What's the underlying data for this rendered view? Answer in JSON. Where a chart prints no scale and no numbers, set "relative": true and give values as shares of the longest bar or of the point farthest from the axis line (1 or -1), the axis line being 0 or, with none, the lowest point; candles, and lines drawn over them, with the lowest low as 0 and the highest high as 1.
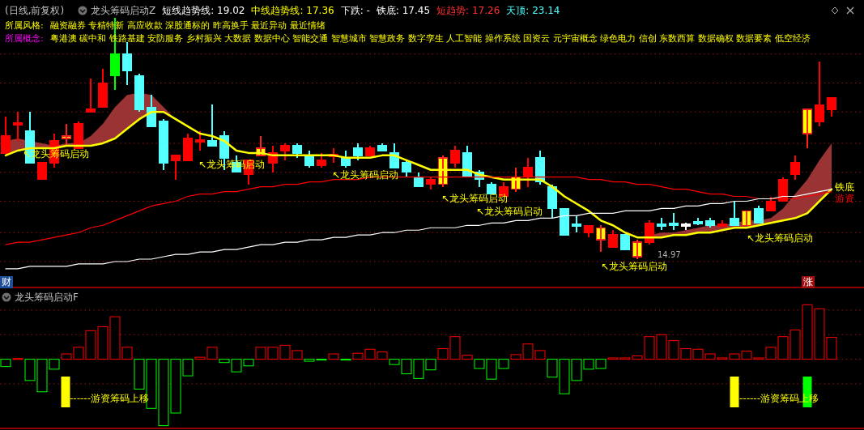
{
  "chart_data": [
    {
      "type": "candlestick",
      "title": "(日线,前复权)",
      "relative": true,
      "ref_lines": [
        {
          "axis": "y",
          "value": 0.85,
          "color": "#a01010",
          "line_style": "dotted"
        },
        {
          "axis": "y",
          "value": 0.73,
          "color": "#a01010",
          "line_style": "dotted"
        },
        {
          "axis": "y",
          "value": 0.61,
          "color": "#a01010",
          "line_style": "dotted"
        },
        {
          "axis": "y",
          "value": 0.48,
          "color": "#a01010",
          "line_style": "dotted"
        },
        {
          "axis": "y",
          "value": 0.36,
          "color": "#a01010",
          "line_style": "dotted"
        },
        {
          "axis": "y",
          "value": 0.24,
          "color": "#a01010",
          "line_style": "dotted"
        },
        {
          "axis": "y",
          "value": 0.11,
          "color": "#a01010",
          "line_style": "dotted"
        },
        {
          "axis": "y",
          "value": -0.01,
          "color": "#a01010",
          "line_style": "dotted"
        }
      ],
      "categories": [
        null,
        null,
        null,
        null,
        null,
        null,
        null,
        null,
        null,
        null,
        null,
        null,
        null,
        null,
        null,
        null,
        null,
        null,
        null,
        null,
        null,
        null,
        null,
        null,
        null,
        null,
        null,
        null,
        null,
        null,
        null,
        null,
        null,
        null,
        null,
        null,
        null,
        null,
        null,
        null,
        null,
        null,
        null,
        null,
        null,
        null,
        null,
        null,
        null,
        null,
        null,
        null,
        null,
        null,
        null,
        null,
        null,
        null,
        null,
        null,
        null,
        null,
        null,
        null,
        null,
        null,
        null,
        null,
        null
      ],
      "ohlc": [
        [
          0.44,
          0.59,
          0.44,
          0.51
        ],
        [
          0.56,
          0.61,
          0.49,
          0.56
        ],
        [
          0.53,
          0.61,
          0.4,
          0.4
        ],
        [
          0.33,
          0.4,
          0.33,
          0.4
        ],
        [
          0.4,
          0.52,
          0.38,
          0.49
        ],
        [
          0.5,
          0.56,
          0.47,
          0.51
        ],
        [
          0.46,
          0.57,
          0.46,
          0.56
        ],
        [
          0.61,
          0.75,
          0.61,
          0.62
        ],
        [
          0.63,
          0.79,
          0.63,
          0.73
        ],
        [
          0.85,
          1,
          0.7,
          0.76
        ],
        [
          0.85,
          0.9,
          0.72,
          0.78
        ],
        [
          0.76,
          0.77,
          0.61,
          0.62
        ],
        [
          0.63,
          0.68,
          0.55,
          0.55
        ],
        [
          0.57,
          0.58,
          0.37,
          0.4
        ],
        [
          0.41,
          0.43,
          0.33,
          0.43
        ],
        [
          0.41,
          0.52,
          0.41,
          0.5
        ],
        [
          0.49,
          0.53,
          0.45,
          0.49
        ],
        [
          0.49,
          0.64,
          0.47,
          0.47
        ],
        [
          0.51,
          0.53,
          0.37,
          0.42
        ],
        [
          0.4,
          0.43,
          0.36,
          0.36
        ],
        [
          0.35,
          0.41,
          0.31,
          0.41
        ],
        [
          0.43,
          0.51,
          0.43,
          0.46
        ],
        [
          0.4,
          0.47,
          0.36,
          0.44
        ],
        [
          0.45,
          0.48,
          0.41,
          0.47
        ],
        [
          0.47,
          0.48,
          0.42,
          0.44
        ],
        [
          0.43,
          0.45,
          0.38,
          0.39
        ],
        [
          0.39,
          0.44,
          0.38,
          0.41
        ],
        [
          0.43,
          0.46,
          0.4,
          0.43
        ],
        [
          0.42,
          0.45,
          0.38,
          0.39
        ],
        [
          0.46,
          0.48,
          0.41,
          0.43
        ],
        [
          0.43,
          0.47,
          0.43,
          0.46
        ],
        [
          0.47,
          0.48,
          0.45,
          0.45
        ],
        [
          0.44,
          0.48,
          0.38,
          0.38
        ],
        [
          0.4,
          0.41,
          0.34,
          0.36
        ],
        [
          0.34,
          0.36,
          0.3,
          0.3
        ],
        [
          0.31,
          0.34,
          0.29,
          0.33
        ],
        [
          0.31,
          0.43,
          0.3,
          0.42
        ],
        [
          0.4,
          0.47,
          0.38,
          0.45
        ],
        [
          0.44,
          0.47,
          0.34,
          0.34
        ],
        [
          0.36,
          0.37,
          0.3,
          0.33
        ],
        [
          0.31,
          0.32,
          0.27,
          0.27
        ],
        [
          0.26,
          0.32,
          0.26,
          0.3
        ],
        [
          0.29,
          0.38,
          0.28,
          0.34
        ],
        [
          0.34,
          0.42,
          0.3,
          0.38
        ],
        [
          0.42,
          0.45,
          0.31,
          0.32
        ],
        [
          0.3,
          0.31,
          0.17,
          0.21
        ],
        [
          0.21,
          0.21,
          0.1,
          0.1
        ],
        [
          0.14,
          0.18,
          0.11,
          0.14
        ],
        [
          0.11,
          0.14,
          0.09,
          0.14
        ],
        [
          0.08,
          0.14,
          0.03,
          0.13
        ],
        [
          0.05,
          0.12,
          0.05,
          0.1
        ],
        [
          0.1,
          0.1,
          0.04,
          0.04
        ],
        [
          0.01,
          0.08,
          0,
          0.07
        ],
        [
          0.07,
          0.16,
          0.06,
          0.15
        ],
        [
          0.14,
          0.17,
          0.12,
          0.14
        ],
        [
          0.15,
          0.19,
          0.12,
          0.14
        ],
        [
          0.14,
          0.15,
          0.12,
          0.14
        ],
        [
          0.15,
          0.17,
          0.14,
          0.15
        ],
        [
          0.16,
          0.17,
          0.13,
          0.14
        ],
        [
          0.14,
          0.16,
          0.13,
          0.14
        ],
        [
          0.17,
          0.24,
          0.14,
          0.14
        ],
        [
          0.14,
          0.2,
          0.14,
          0.2
        ],
        [
          0.21,
          0.22,
          0.15,
          0.15
        ],
        [
          0.2,
          0.26,
          0.2,
          0.24
        ],
        [
          0.24,
          0.34,
          0.24,
          0.33
        ],
        [
          0.35,
          0.43,
          0.33,
          0.4
        ],
        [
          0.52,
          0.62,
          0.46,
          0.62
        ],
        [
          0.57,
          0.82,
          0.55,
          0.64
        ],
        [
          0.62,
          0.67,
          0.59,
          0.67
        ]
      ],
      "colors": [
        "#ff0000",
        "#ff0000",
        "#54ffff",
        "#ff0000",
        "#ff0000",
        "#ffff00",
        "#ff0000",
        "#ff0000",
        "#ff0000",
        "#00ff00",
        "#54ffff",
        "#54ffff",
        "#54ffff",
        "#54ffff",
        "#ff0000",
        "#ff0000",
        "#ff0000",
        "#54ffff",
        "#54ffff",
        "#54ffff",
        "#ff0000",
        "#ffff00",
        "#ff0000",
        "#ff0000",
        "#54ffff",
        "#54ffff",
        "#ff0000",
        "#ff0000",
        "#54ffff",
        "#54ffff",
        "#ff0000",
        "#54ffff",
        "#54ffff",
        "#54ffff",
        "#54ffff",
        "#ff0000",
        "#ffff00",
        "#ff0000",
        "#54ffff",
        "#54ffff",
        "#54ffff",
        "#ff0000",
        "#ffff00",
        "#ff0000",
        "#54ffff",
        "#54ffff",
        "#54ffff",
        "#54ffff",
        "#ff0000",
        "#ffff00",
        "#ff0000",
        "#54ffff",
        "#ffff00",
        "#ff0000",
        "#54ffff",
        "#54ffff",
        "#ffffff",
        "#54ffff",
        "#54ffff",
        "#ff0000",
        "#54ffff",
        "#ffff00",
        "#54ffff",
        "#ff0000",
        "#ff0000",
        "#ff0000",
        "#ffff00",
        "#ff0000",
        "#ff0000"
      ],
      "series": [
        {
          "type": "line",
          "color": "#ffff00",
          "values": [
            0.43,
            0.45,
            0.46,
            0.46,
            0.46,
            0.47,
            0.47,
            0.47,
            0.48,
            0.5,
            0.54,
            0.58,
            0.61,
            0.61,
            0.58,
            0.55,
            0.52,
            0.51,
            0.49,
            0.45,
            0.44,
            0.44,
            0.43,
            0.43,
            0.43,
            0.43,
            0.43,
            0.43,
            0.42,
            0.42,
            0.42,
            0.43,
            0.43,
            0.41,
            0.39,
            0.37,
            0.37,
            0.37,
            0.37,
            0.35,
            0.34,
            0.33,
            0.33,
            0.33,
            0.33,
            0.3,
            0.26,
            0.23,
            0.2,
            0.16,
            0.14,
            0.11,
            0.09,
            0.09,
            0.09,
            0.1,
            0.1,
            0.11,
            0.11,
            0.12,
            0.13,
            0.13,
            0.14,
            0.15,
            0.16,
            0.17,
            0.19,
            0.24,
            0.29
          ],
          "lower": [
            0.43,
            0.45,
            0.46,
            0.46,
            0.46,
            0.47,
            0.47,
            0.47,
            0.48,
            0.5,
            0.54,
            0.58,
            0.61,
            0.61,
            0.58,
            null,
            null,
            null,
            null,
            null,
            null,
            null,
            null,
            null,
            null,
            null,
            null,
            null,
            null,
            null,
            null,
            null,
            null,
            null,
            null,
            null,
            null,
            null,
            null,
            null,
            null,
            null,
            null,
            null,
            null,
            null,
            null,
            null,
            null,
            null,
            null,
            null,
            0.09,
            0.09,
            0.09,
            0.1,
            0.1,
            0.11,
            0.11,
            0.12,
            0.13,
            0.13,
            0.14,
            0.15,
            0.16,
            0.17,
            0.19,
            0.24,
            0.29
          ],
          "upper": [
            0.49,
            0.5,
            0.49,
            0.48,
            0.47,
            0.48,
            0.48,
            0.51,
            0.56,
            0.63,
            0.68,
            0.69,
            0.68,
            0.63,
            0.58,
            null,
            null,
            null,
            null,
            null,
            null,
            null,
            null,
            null,
            null,
            null,
            null,
            null,
            null,
            null,
            null,
            null,
            null,
            null,
            null,
            null,
            null,
            null,
            null,
            null,
            null,
            null,
            null,
            null,
            null,
            null,
            null,
            null,
            null,
            null,
            null,
            null,
            0.09,
            0.1,
            0.11,
            0.11,
            0.12,
            0.13,
            0.14,
            0.14,
            0.15,
            0.16,
            0.16,
            0.17,
            0.21,
            0.27,
            0.33,
            0.41,
            0.48
          ]
        },
        {
          "type": "line",
          "color": "#ff0000",
          "values": [
            0.06,
            0.07,
            0.07,
            0.08,
            0.09,
            0.1,
            0.11,
            0.13,
            0.14,
            0.16,
            0.18,
            0.2,
            0.22,
            0.23,
            0.24,
            0.26,
            0.27,
            0.27,
            0.28,
            0.28,
            0.29,
            0.3,
            0.3,
            0.31,
            0.31,
            0.32,
            0.32,
            0.33,
            0.33,
            0.33,
            0.34,
            0.34,
            0.34,
            0.34,
            0.34,
            0.34,
            0.34,
            0.34,
            0.34,
            0.34,
            0.34,
            0.34,
            0.34,
            0.34,
            0.34,
            0.34,
            0.34,
            0.34,
            0.33,
            0.33,
            0.32,
            0.32,
            0.31,
            0.31,
            0.3,
            0.29,
            0.29,
            0.28,
            0.27,
            0.27,
            0.26,
            0.26,
            0.25,
            0.25,
            0.25,
            0.25,
            0.26,
            0.27,
            0.28
          ]
        },
        {
          "type": "line",
          "color": "#ffffff",
          "values": [
            -0.04,
            -0.04,
            -0.03,
            -0.03,
            -0.03,
            -0.03,
            -0.02,
            -0.02,
            -0.02,
            -0.01,
            -0.01,
            0,
            0,
            0.01,
            0.02,
            0.02,
            0.03,
            0.03,
            0.04,
            0.04,
            0.05,
            0.06,
            0.06,
            0.07,
            0.07,
            0.08,
            0.08,
            0.09,
            0.09,
            0.1,
            0.1,
            0.11,
            0.11,
            0.12,
            0.12,
            0.13,
            0.13,
            0.13,
            0.14,
            0.14,
            0.15,
            0.15,
            0.16,
            0.16,
            0.17,
            0.17,
            0.18,
            0.18,
            0.19,
            0.19,
            0.19,
            0.2,
            0.2,
            0.2,
            0.21,
            0.21,
            0.22,
            0.22,
            0.23,
            0.23,
            0.24,
            0.24,
            0.25,
            0.25,
            0.26,
            0.26,
            0.27,
            0.28,
            0.29
          ]
        }
      ],
      "annotations": [
        "龙头筹码启动Z",
        "短线趋势线: 19.02",
        "中线趋势线: 17.36",
        "下跌: -",
        "铁底: 17.45",
        "短趋势: 17.26",
        "天顶: 23.14",
        "所属风格:",
        "融资融券 专精特新 高应收款 深股通标的 昨高换手 最近异动 最近情绪",
        "所属概念:",
        "粤港澳 碳中和 铁路基建 安防服务 乡村振兴 大数据 数据中心 智能交通 智慧城市 智慧政务 数字孪生 人工智能 操作系统 国资云 元宇宙概念 绿色电力 信创 东数西算 数据确权 数据要素 低空经济",
        "↖龙头筹码启动",
        "↖龙头筹码启动",
        "↖龙头筹码启动",
        "↖龙头筹码启动",
        "↖龙头筹码启动",
        "↖龙头筹码启动",
        "↖龙头筹码启动",
        "铁底",
        "游资",
        "14.97",
        "财",
        "涨"
      ]
    },
    {
      "type": "bar",
      "title": "龙头筹码启动F",
      "relative": true,
      "ref_lines": [
        {
          "axis": "y",
          "value": 0.74,
          "color": "#a01010",
          "line_style": "dotted"
        },
        {
          "axis": "y",
          "value": 0.37,
          "color": "#a01010",
          "line_style": "dotted"
        },
        {
          "axis": "y",
          "value": 0,
          "color": "#a01010",
          "line_style": "dotted"
        },
        {
          "axis": "y",
          "value": -0.37,
          "color": "#a01010",
          "line_style": "dotted"
        }
      ],
      "categories": [
        null,
        null,
        null,
        null,
        null,
        null,
        null,
        null,
        null,
        null,
        null,
        null,
        null,
        null,
        null,
        null,
        null,
        null,
        null,
        null,
        null,
        null,
        null,
        null,
        null,
        null,
        null,
        null,
        null,
        null,
        null,
        null,
        null,
        null,
        null,
        null,
        null,
        null,
        null,
        null,
        null,
        null,
        null,
        null,
        null,
        null,
        null,
        null,
        null,
        null,
        null,
        null,
        null,
        null,
        null,
        null,
        null,
        null,
        null,
        null,
        null,
        null,
        null,
        null,
        null,
        null,
        null,
        null,
        null
      ],
      "series": [
        {
          "values": [
            -0.11,
            0.01,
            -0.32,
            -0.49,
            -0.15,
            0.08,
            0.18,
            0.43,
            0.49,
            0.64,
            0.18,
            -0.45,
            -0.74,
            -1,
            -0.81,
            -0.25,
            0.03,
            0.18,
            -0.05,
            -0.19,
            -0.1,
            0.18,
            0.18,
            0.21,
            0.13,
            -0.03,
            -0.01,
            0.08,
            -0.01,
            0.09,
            0.15,
            0.11,
            -0.08,
            -0.22,
            -0.29,
            -0.16,
            0.16,
            0.34,
            0.06,
            -0.14,
            -0.3,
            -0.14,
            0.07,
            0.23,
            0.13,
            -0.27,
            -0.52,
            -0.32,
            -0.15,
            -0.14,
            0.02,
            0.02,
            0.05,
            0.34,
            0.37,
            0.28,
            0.16,
            0.15,
            0.08,
            0.02,
            0.08,
            0.12,
            0.02,
            0.18,
            0.34,
            0.44,
            0.82,
            0.76,
            0.33
          ],
          "colors": [
            "#00ff00",
            "#ff0000",
            "#00ff00",
            "#00ff00",
            "#00ff00",
            "#ff0000",
            "#ff0000",
            "#ff0000",
            "#ff0000",
            "#ff0000",
            "#ff0000",
            "#00ff00",
            "#00ff00",
            "#00ff00",
            "#00ff00",
            "#00ff00",
            "#ff0000",
            "#ff0000",
            "#00ff00",
            "#00ff00",
            "#00ff00",
            "#ff0000",
            "#ff0000",
            "#ff0000",
            "#ff0000",
            "#00ff00",
            "#00ff00",
            "#ff0000",
            "#00ff00",
            "#ff0000",
            "#ff0000",
            "#ff0000",
            "#00ff00",
            "#00ff00",
            "#00ff00",
            "#00ff00",
            "#ff0000",
            "#ff0000",
            "#ff0000",
            "#00ff00",
            "#00ff00",
            "#00ff00",
            "#ff0000",
            "#ff0000",
            "#ff0000",
            "#00ff00",
            "#00ff00",
            "#00ff00",
            "#00ff00",
            "#00ff00",
            "#ff0000",
            "#ff0000",
            "#ff0000",
            "#ff0000",
            "#ff0000",
            "#ff0000",
            "#ff0000",
            "#ff0000",
            "#ff0000",
            "#ff0000",
            "#ff0000",
            "#ff0000",
            "#ff0000",
            "#ff0000",
            "#ff0000",
            "#ff0000",
            "#ff0000",
            "#ff0000",
            "#ff0000"
          ]
        }
      ],
      "annotations": [
        "------游资筹码上移",
        "------游资筹码上移"
      ]
    }
  ]
}
